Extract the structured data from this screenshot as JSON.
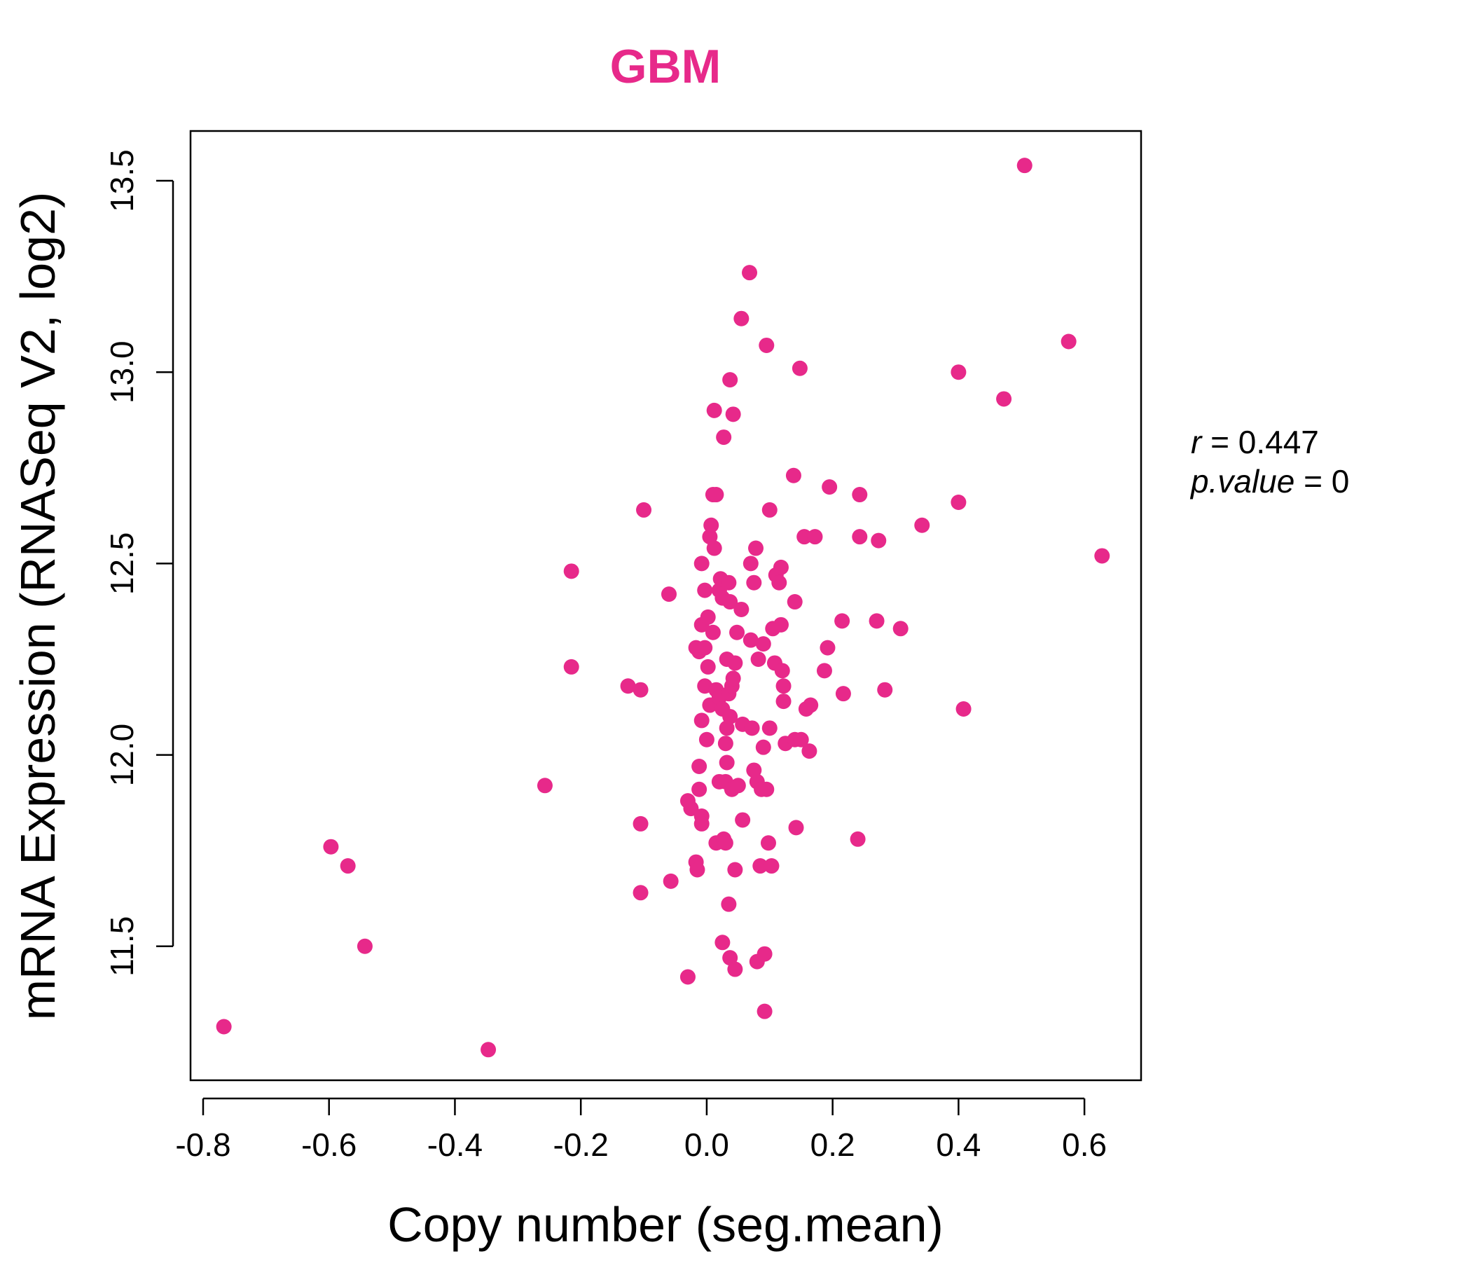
{
  "chart_data": {
    "type": "scatter",
    "title": "GBM",
    "xlabel": "Copy number (seg.mean)",
    "ylabel": "mRNA Expression (RNASeq V2, log2)",
    "xlim": [
      -0.82,
      0.69
    ],
    "ylim": [
      11.15,
      13.63
    ],
    "x_ticks": [
      -0.8,
      -0.6,
      -0.4,
      -0.2,
      0.0,
      0.2,
      0.4,
      0.6
    ],
    "x_tick_labels": [
      "-0.8",
      "-0.6",
      "-0.4",
      "-0.2",
      "0.0",
      "0.2",
      "0.4",
      "0.6"
    ],
    "y_ticks": [
      11.5,
      12.0,
      12.5,
      13.0,
      13.5
    ],
    "y_tick_labels": [
      "11.5",
      "12.0",
      "12.5",
      "13.0",
      "13.5"
    ],
    "grid": false,
    "legend": "none",
    "point_color": "#E7298A",
    "annotations": {
      "r_label": "r",
      "r_eq": " = ",
      "r_value": "0.447",
      "p_label": "p.value",
      "p_eq": " = ",
      "p_value": "0"
    },
    "series": [
      {
        "points": [
          [
            -0.767,
            11.29
          ],
          [
            -0.347,
            11.23
          ],
          [
            -0.597,
            11.76
          ],
          [
            -0.57,
            11.71
          ],
          [
            -0.543,
            11.5
          ],
          [
            -0.257,
            11.92
          ],
          [
            -0.215,
            12.48
          ],
          [
            -0.215,
            12.23
          ],
          [
            -0.125,
            12.18
          ],
          [
            -0.105,
            12.17
          ],
          [
            -0.1,
            12.64
          ],
          [
            -0.105,
            11.82
          ],
          [
            -0.105,
            11.64
          ],
          [
            -0.06,
            12.42
          ],
          [
            -0.057,
            11.67
          ],
          [
            -0.03,
            11.42
          ],
          [
            -0.03,
            11.88
          ],
          [
            -0.025,
            11.86
          ],
          [
            -0.017,
            11.72
          ],
          [
            -0.015,
            11.7
          ],
          [
            -0.012,
            11.97
          ],
          [
            -0.012,
            11.91
          ],
          [
            -0.008,
            11.84
          ],
          [
            -0.008,
            11.82
          ],
          [
            -0.008,
            12.09
          ],
          [
            -0.017,
            12.28
          ],
          [
            -0.012,
            12.27
          ],
          [
            -0.008,
            12.34
          ],
          [
            -0.008,
            12.5
          ],
          [
            -0.003,
            12.43
          ],
          [
            -0.003,
            12.28
          ],
          [
            -0.003,
            12.18
          ],
          [
            0.0,
            12.04
          ],
          [
            0.002,
            12.36
          ],
          [
            0.002,
            12.23
          ],
          [
            0.005,
            12.57
          ],
          [
            0.005,
            12.13
          ],
          [
            0.007,
            12.6
          ],
          [
            0.01,
            12.68
          ],
          [
            0.01,
            12.32
          ],
          [
            0.012,
            12.9
          ],
          [
            0.012,
            12.54
          ],
          [
            0.015,
            12.68
          ],
          [
            0.015,
            12.17
          ],
          [
            0.015,
            11.77
          ],
          [
            0.02,
            12.43
          ],
          [
            0.02,
            12.15
          ],
          [
            0.02,
            11.93
          ],
          [
            0.022,
            12.46
          ],
          [
            0.025,
            12.41
          ],
          [
            0.025,
            12.12
          ],
          [
            0.025,
            11.51
          ],
          [
            0.027,
            12.83
          ],
          [
            0.027,
            11.78
          ],
          [
            0.03,
            12.03
          ],
          [
            0.03,
            11.93
          ],
          [
            0.03,
            11.77
          ],
          [
            0.032,
            12.25
          ],
          [
            0.032,
            12.07
          ],
          [
            0.032,
            11.98
          ],
          [
            0.035,
            12.45
          ],
          [
            0.035,
            12.16
          ],
          [
            0.035,
            11.61
          ],
          [
            0.037,
            12.98
          ],
          [
            0.037,
            12.4
          ],
          [
            0.037,
            12.1
          ],
          [
            0.037,
            11.47
          ],
          [
            0.04,
            12.18
          ],
          [
            0.04,
            11.91
          ],
          [
            0.042,
            12.89
          ],
          [
            0.042,
            12.2
          ],
          [
            0.045,
            12.24
          ],
          [
            0.045,
            11.7
          ],
          [
            0.045,
            11.44
          ],
          [
            0.048,
            12.32
          ],
          [
            0.05,
            11.92
          ],
          [
            0.055,
            13.14
          ],
          [
            0.055,
            12.38
          ],
          [
            0.057,
            12.08
          ],
          [
            0.057,
            11.83
          ],
          [
            0.068,
            13.26
          ],
          [
            0.07,
            12.5
          ],
          [
            0.07,
            12.3
          ],
          [
            0.072,
            12.07
          ],
          [
            0.075,
            12.45
          ],
          [
            0.075,
            11.96
          ],
          [
            0.078,
            12.54
          ],
          [
            0.08,
            11.93
          ],
          [
            0.08,
            11.46
          ],
          [
            0.082,
            12.25
          ],
          [
            0.085,
            11.71
          ],
          [
            0.087,
            11.91
          ],
          [
            0.09,
            12.29
          ],
          [
            0.09,
            12.02
          ],
          [
            0.092,
            11.48
          ],
          [
            0.092,
            11.33
          ],
          [
            0.095,
            13.07
          ],
          [
            0.095,
            11.91
          ],
          [
            0.098,
            11.77
          ],
          [
            0.1,
            12.64
          ],
          [
            0.1,
            12.07
          ],
          [
            0.103,
            11.71
          ],
          [
            0.105,
            12.33
          ],
          [
            0.108,
            12.24
          ],
          [
            0.11,
            12.47
          ],
          [
            0.115,
            12.45
          ],
          [
            0.118,
            12.49
          ],
          [
            0.118,
            12.34
          ],
          [
            0.12,
            12.22
          ],
          [
            0.122,
            12.18
          ],
          [
            0.122,
            12.14
          ],
          [
            0.125,
            12.03
          ],
          [
            0.138,
            12.73
          ],
          [
            0.14,
            12.4
          ],
          [
            0.14,
            12.04
          ],
          [
            0.142,
            11.81
          ],
          [
            0.148,
            13.01
          ],
          [
            0.15,
            12.04
          ],
          [
            0.155,
            12.57
          ],
          [
            0.158,
            12.12
          ],
          [
            0.163,
            12.01
          ],
          [
            0.165,
            12.13
          ],
          [
            0.172,
            12.57
          ],
          [
            0.187,
            12.22
          ],
          [
            0.192,
            12.28
          ],
          [
            0.195,
            12.7
          ],
          [
            0.215,
            12.35
          ],
          [
            0.217,
            12.16
          ],
          [
            0.24,
            11.78
          ],
          [
            0.243,
            12.68
          ],
          [
            0.243,
            12.57
          ],
          [
            0.27,
            12.35
          ],
          [
            0.273,
            12.56
          ],
          [
            0.283,
            12.17
          ],
          [
            0.308,
            12.33
          ],
          [
            0.342,
            12.6
          ],
          [
            0.4,
            13.0
          ],
          [
            0.4,
            12.66
          ],
          [
            0.408,
            12.12
          ],
          [
            0.472,
            12.93
          ],
          [
            0.505,
            13.54
          ],
          [
            0.575,
            13.08
          ],
          [
            0.628,
            12.52
          ]
        ]
      }
    ]
  }
}
